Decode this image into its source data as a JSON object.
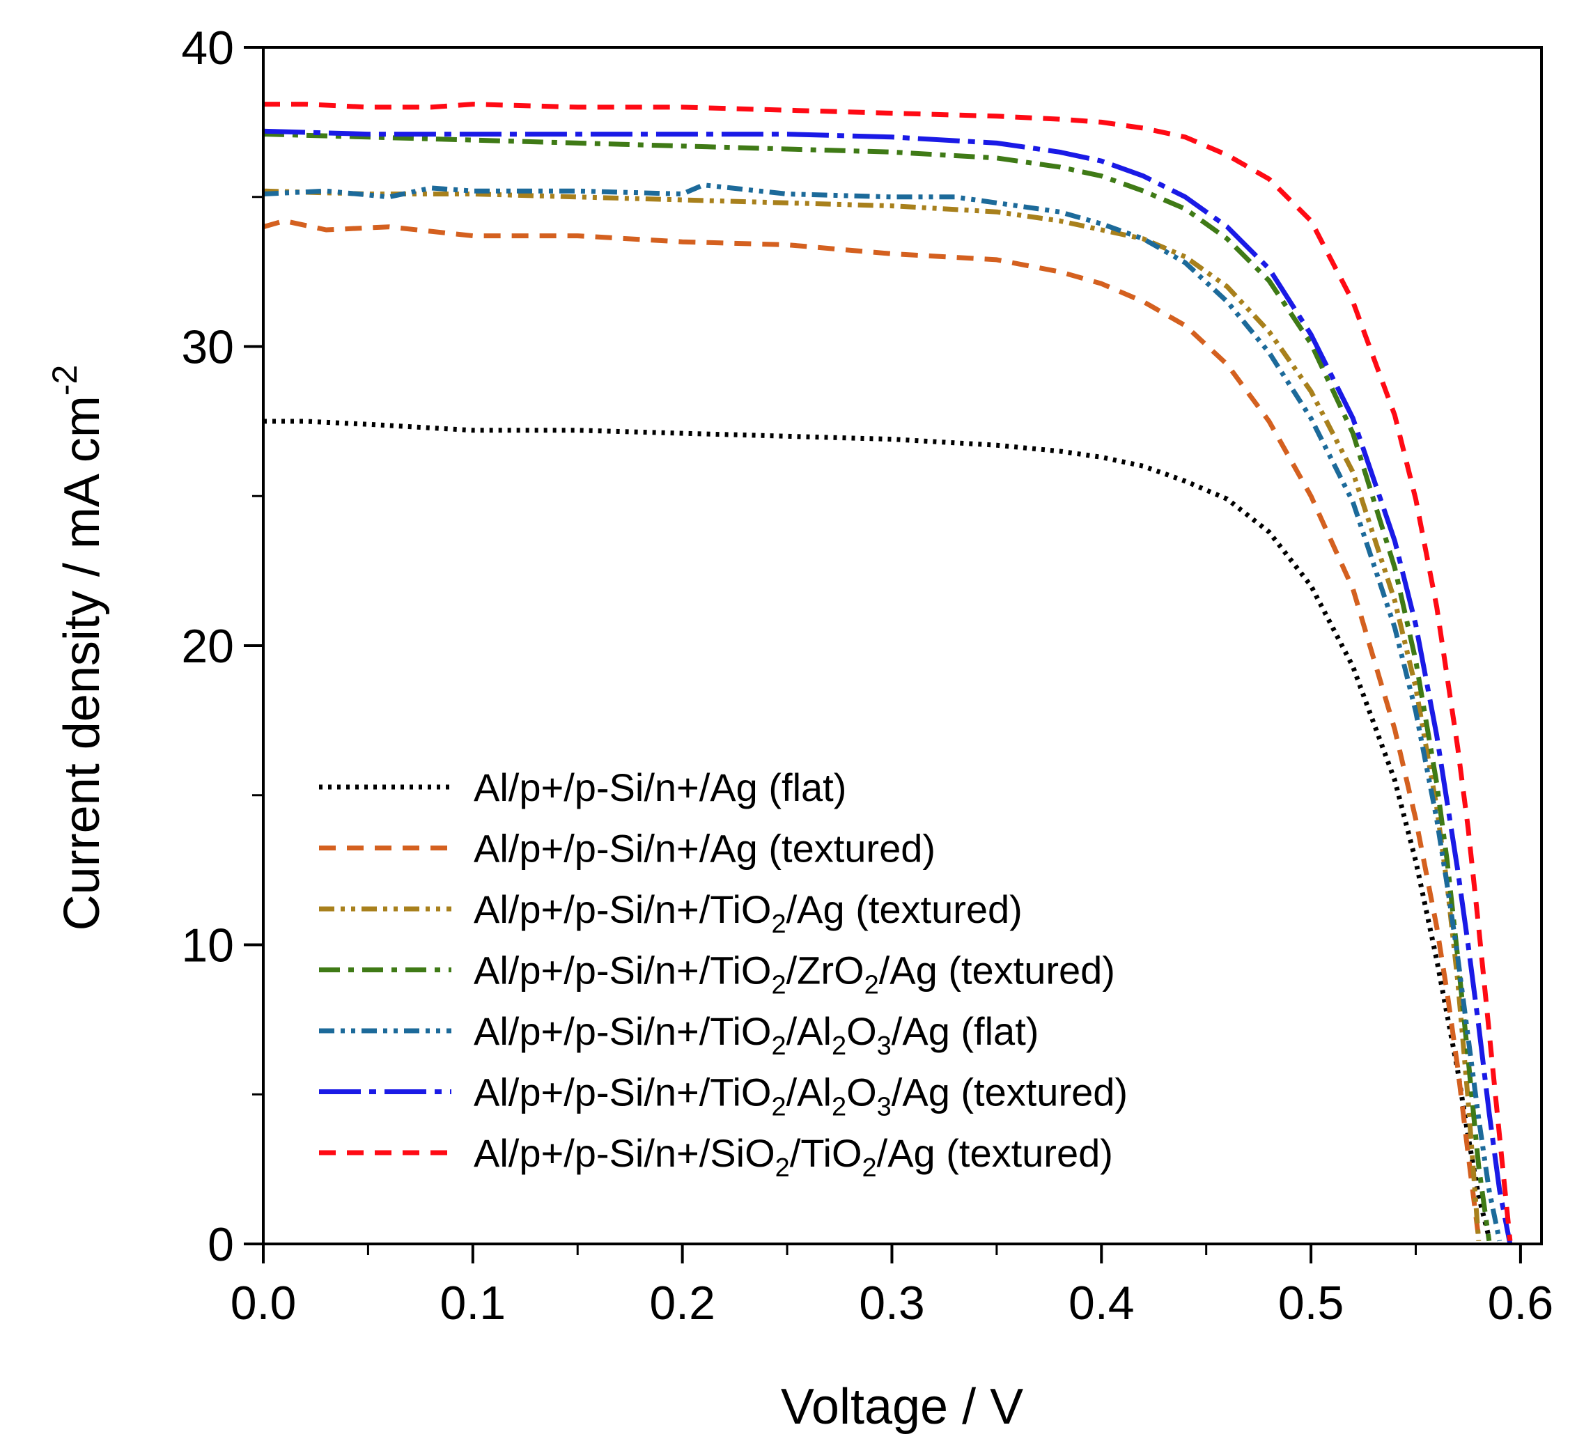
{
  "chart_data": {
    "type": "line",
    "title": "",
    "xlabel": "Voltage / V",
    "ylabel": "Current density / mA cm",
    "ylabel_superscript": "-2",
    "xlim": [
      0.0,
      0.61
    ],
    "ylim": [
      0,
      40
    ],
    "x_ticks": [
      0.0,
      0.1,
      0.2,
      0.3,
      0.4,
      0.5,
      0.6
    ],
    "x_tick_labels": [
      "0.0",
      "0.1",
      "0.2",
      "0.3",
      "0.4",
      "0.5",
      "0.6"
    ],
    "y_ticks": [
      0,
      10,
      20,
      30,
      40
    ],
    "y_tick_labels": [
      "0",
      "10",
      "20",
      "30",
      "40"
    ],
    "grid": false,
    "legend_position": "bottom-left",
    "series": [
      {
        "name": "Al/p+/p-Si/n+/Ag (flat)",
        "label": [
          {
            "t": "Al/p+/p-Si/n+/Ag (flat)"
          }
        ],
        "color": "#000000",
        "style": "dotted",
        "x": [
          0.0,
          0.02,
          0.05,
          0.1,
          0.15,
          0.2,
          0.25,
          0.3,
          0.35,
          0.38,
          0.4,
          0.42,
          0.44,
          0.46,
          0.48,
          0.5,
          0.52,
          0.54,
          0.55,
          0.56,
          0.57,
          0.575,
          0.58,
          0.585
        ],
        "y": [
          27.5,
          27.5,
          27.4,
          27.2,
          27.2,
          27.1,
          27.0,
          26.9,
          26.7,
          26.5,
          26.3,
          26.0,
          25.5,
          24.9,
          23.8,
          22.0,
          19.3,
          15.5,
          12.8,
          9.5,
          5.8,
          3.6,
          1.6,
          0.2
        ]
      },
      {
        "name": "Al/p+/p-Si/n+/Ag (textured)",
        "label": [
          {
            "t": "Al/p+/p-Si/n+/Ag (textured)"
          }
        ],
        "color": "#d4601f",
        "style": "dashed",
        "x": [
          0.0,
          0.01,
          0.03,
          0.06,
          0.1,
          0.15,
          0.2,
          0.25,
          0.3,
          0.35,
          0.38,
          0.4,
          0.42,
          0.44,
          0.46,
          0.48,
          0.5,
          0.52,
          0.54,
          0.55,
          0.56,
          0.565,
          0.57,
          0.575,
          0.58
        ],
        "y": [
          34.0,
          34.2,
          33.9,
          34.0,
          33.7,
          33.7,
          33.5,
          33.4,
          33.1,
          32.9,
          32.5,
          32.1,
          31.5,
          30.7,
          29.4,
          27.5,
          25.0,
          21.9,
          17.2,
          14.2,
          10.6,
          8.4,
          5.9,
          3.0,
          0.2
        ]
      },
      {
        "name": "Al/p+/p-Si/n+/TiO2/Ag (textured)",
        "label": [
          {
            "t": "Al/p+/p-Si/n+/TiO"
          },
          {
            "t": "2",
            "sub": true
          },
          {
            "t": "/Ag (textured)"
          }
        ],
        "color": "#a8801c",
        "style": "dash-dot-dot",
        "x": [
          0.0,
          0.05,
          0.1,
          0.15,
          0.2,
          0.25,
          0.3,
          0.35,
          0.38,
          0.4,
          0.42,
          0.44,
          0.46,
          0.48,
          0.5,
          0.52,
          0.54,
          0.55,
          0.56,
          0.565,
          0.57,
          0.575,
          0.58
        ],
        "y": [
          35.2,
          35.1,
          35.1,
          35.0,
          34.9,
          34.8,
          34.7,
          34.5,
          34.2,
          33.9,
          33.6,
          33.0,
          32.0,
          30.5,
          28.5,
          25.8,
          21.5,
          18.6,
          14.6,
          12.0,
          8.8,
          4.8,
          0.1
        ]
      },
      {
        "name": "Al/p+/p-Si/n+/TiO2/ZrO2/Ag (textured)",
        "label": [
          {
            "t": "Al/p+/p-Si/n+/TiO"
          },
          {
            "t": "2",
            "sub": true
          },
          {
            "t": "/ZrO"
          },
          {
            "t": "2",
            "sub": true
          },
          {
            "t": "/Ag (textured)"
          }
        ],
        "color": "#3f7a16",
        "style": "dash-dot",
        "x": [
          0.0,
          0.05,
          0.1,
          0.15,
          0.2,
          0.25,
          0.3,
          0.35,
          0.38,
          0.4,
          0.42,
          0.44,
          0.46,
          0.48,
          0.5,
          0.52,
          0.54,
          0.55,
          0.56,
          0.565,
          0.57,
          0.575,
          0.58,
          0.585
        ],
        "y": [
          37.1,
          37.0,
          36.9,
          36.8,
          36.7,
          36.6,
          36.5,
          36.3,
          36.0,
          35.7,
          35.2,
          34.6,
          33.6,
          32.2,
          30.1,
          27.1,
          22.6,
          19.5,
          15.4,
          12.8,
          9.6,
          6.2,
          2.6,
          0.1
        ]
      },
      {
        "name": "Al/p+/p-Si/n+/TiO2/Al2O3/Ag (flat)",
        "label": [
          {
            "t": "Al/p+/p-Si/n+/TiO"
          },
          {
            "t": "2",
            "sub": true
          },
          {
            "t": "/Al"
          },
          {
            "t": "2",
            "sub": true
          },
          {
            "t": "O"
          },
          {
            "t": "3",
            "sub": true
          },
          {
            "t": "/Ag (flat)"
          }
        ],
        "color": "#1c6a9a",
        "style": "dash-dot-dot",
        "x": [
          0.0,
          0.03,
          0.06,
          0.08,
          0.1,
          0.15,
          0.2,
          0.21,
          0.25,
          0.3,
          0.33,
          0.35,
          0.38,
          0.4,
          0.42,
          0.44,
          0.46,
          0.48,
          0.5,
          0.52,
          0.54,
          0.55,
          0.56,
          0.565,
          0.57,
          0.575,
          0.58,
          0.585,
          0.59
        ],
        "y": [
          35.1,
          35.2,
          35.0,
          35.3,
          35.2,
          35.2,
          35.1,
          35.4,
          35.1,
          35.0,
          35.0,
          34.8,
          34.5,
          34.1,
          33.6,
          32.8,
          31.5,
          29.8,
          27.6,
          24.8,
          20.6,
          17.8,
          14.2,
          12.0,
          9.6,
          6.9,
          4.2,
          1.8,
          0.1
        ]
      },
      {
        "name": "Al/p+/p-Si/n+/TiO2/Al2O3/Ag (textured)",
        "label": [
          {
            "t": "Al/p+/p-Si/n+/TiO"
          },
          {
            "t": "2",
            "sub": true
          },
          {
            "t": "/Al"
          },
          {
            "t": "2",
            "sub": true
          },
          {
            "t": "O"
          },
          {
            "t": "3",
            "sub": true
          },
          {
            "t": "/Ag (textured)"
          }
        ],
        "color": "#1a1ae6",
        "style": "long-dash-dot",
        "x": [
          0.0,
          0.05,
          0.1,
          0.15,
          0.2,
          0.25,
          0.3,
          0.35,
          0.38,
          0.4,
          0.42,
          0.44,
          0.46,
          0.48,
          0.5,
          0.52,
          0.54,
          0.55,
          0.56,
          0.57,
          0.575,
          0.58,
          0.585,
          0.59,
          0.595
        ],
        "y": [
          37.2,
          37.1,
          37.1,
          37.1,
          37.1,
          37.1,
          37.0,
          36.8,
          36.5,
          36.2,
          35.7,
          35.0,
          34.0,
          32.6,
          30.4,
          27.6,
          23.5,
          20.7,
          17.0,
          12.5,
          10.0,
          7.3,
          4.4,
          1.8,
          0.0
        ]
      },
      {
        "name": "Al/p+/p-Si/n+/SiO2/TiO2/Ag (textured)",
        "label": [
          {
            "t": "Al/p+/p-Si/n+/SiO"
          },
          {
            "t": "2",
            "sub": true
          },
          {
            "t": "/TiO"
          },
          {
            "t": "2",
            "sub": true
          },
          {
            "t": "/Ag (textured)"
          }
        ],
        "color": "#ff0a14",
        "style": "dashed",
        "x": [
          0.0,
          0.02,
          0.05,
          0.08,
          0.1,
          0.15,
          0.2,
          0.25,
          0.3,
          0.35,
          0.38,
          0.4,
          0.42,
          0.44,
          0.46,
          0.48,
          0.5,
          0.52,
          0.54,
          0.55,
          0.56,
          0.57,
          0.575,
          0.58,
          0.585,
          0.59,
          0.595
        ],
        "y": [
          38.1,
          38.1,
          38.0,
          38.0,
          38.1,
          38.0,
          38.0,
          37.9,
          37.8,
          37.7,
          37.6,
          37.5,
          37.3,
          37.0,
          36.4,
          35.6,
          34.2,
          31.5,
          27.7,
          24.9,
          21.3,
          16.6,
          13.9,
          10.6,
          7.1,
          3.6,
          0.1
        ]
      }
    ]
  }
}
